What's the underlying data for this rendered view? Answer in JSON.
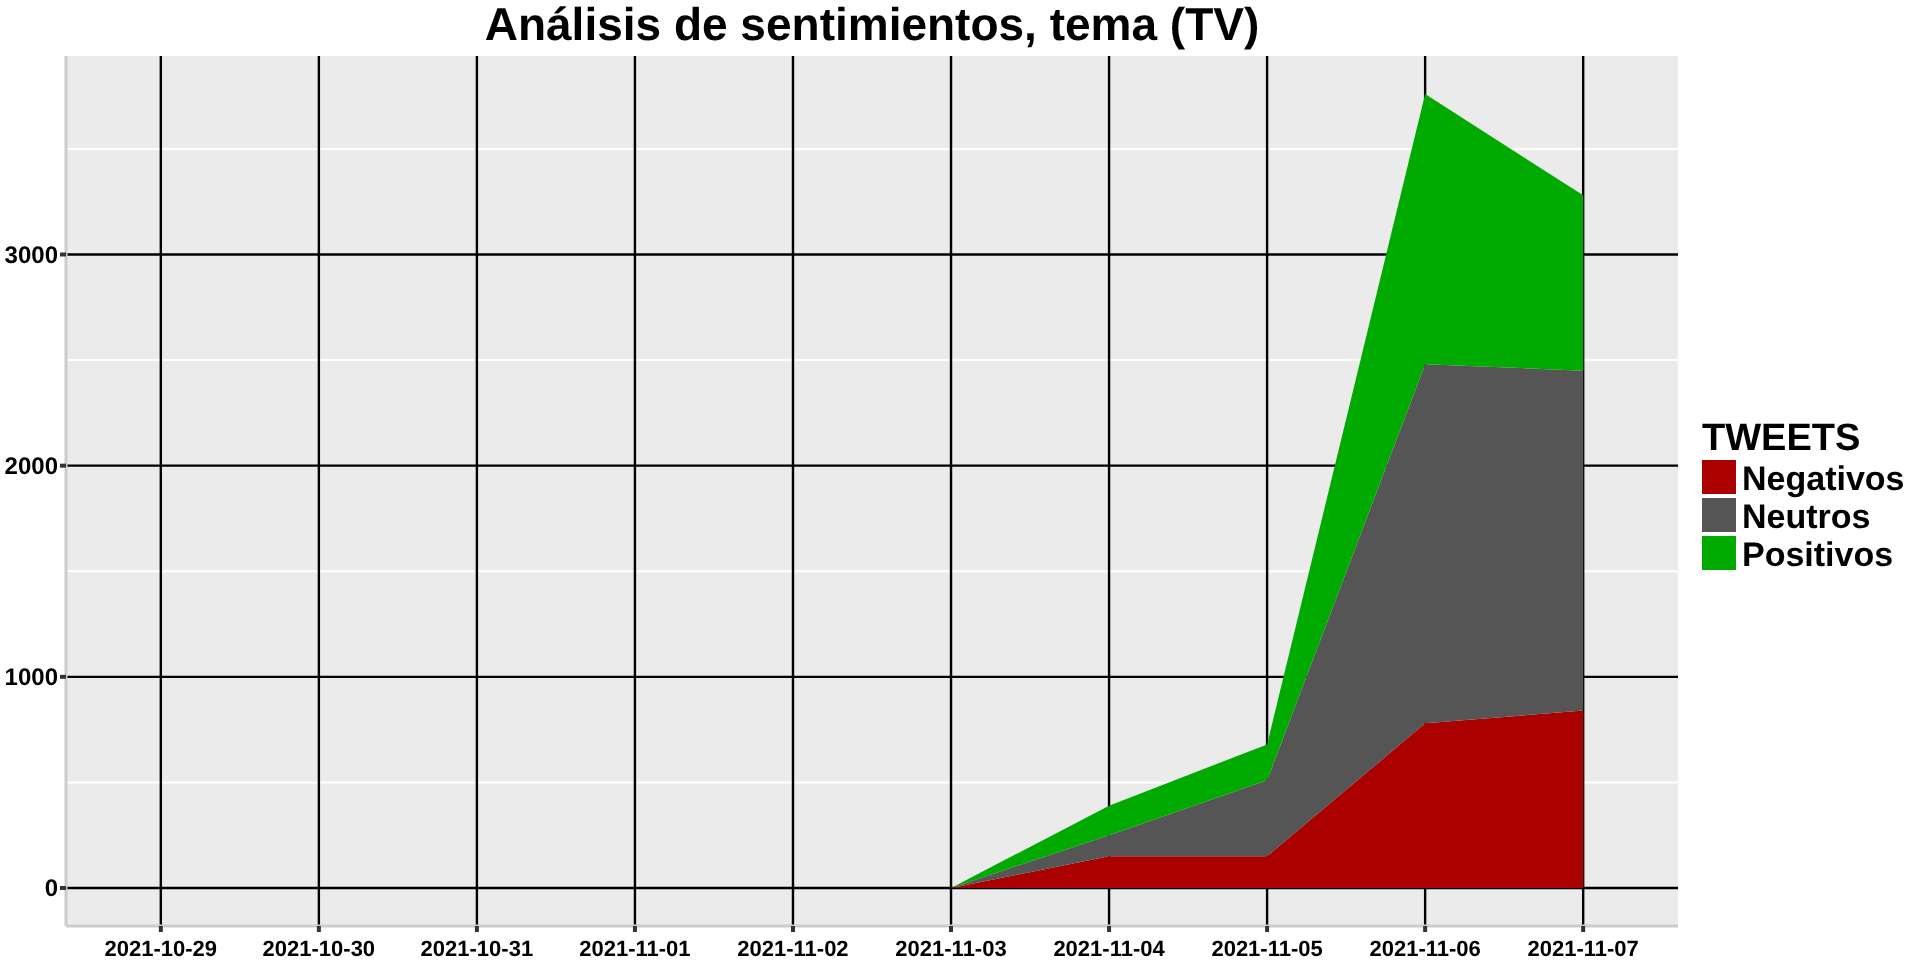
{
  "chart_data": {
    "type": "area",
    "title": "Análisis de sentimientos, tema (TV)",
    "legend_title": "TWEETS",
    "stacked": true,
    "grid": true,
    "legend": "right",
    "categories": [
      "2021-10-29",
      "2021-10-30",
      "2021-10-31",
      "2021-11-01",
      "2021-11-02",
      "2021-11-03",
      "2021-11-04",
      "2021-11-05",
      "2021-11-06",
      "2021-11-07"
    ],
    "ylim": [
      -180,
      3940
    ],
    "yticks": [
      0,
      1000,
      2000,
      3000
    ],
    "series": [
      {
        "name": "Negativos",
        "color": "#aa0000",
        "values": [
          0,
          0,
          0,
          0,
          0,
          0,
          150,
          150,
          780,
          840
        ]
      },
      {
        "name": "Neutros",
        "color": "#555555",
        "values": [
          0,
          0,
          0,
          0,
          0,
          0,
          100,
          360,
          1700,
          1610
        ]
      },
      {
        "name": "Positivos",
        "color": "#00aa00",
        "values": [
          0,
          0,
          0,
          0,
          0,
          0,
          140,
          170,
          1280,
          830
        ]
      }
    ]
  }
}
